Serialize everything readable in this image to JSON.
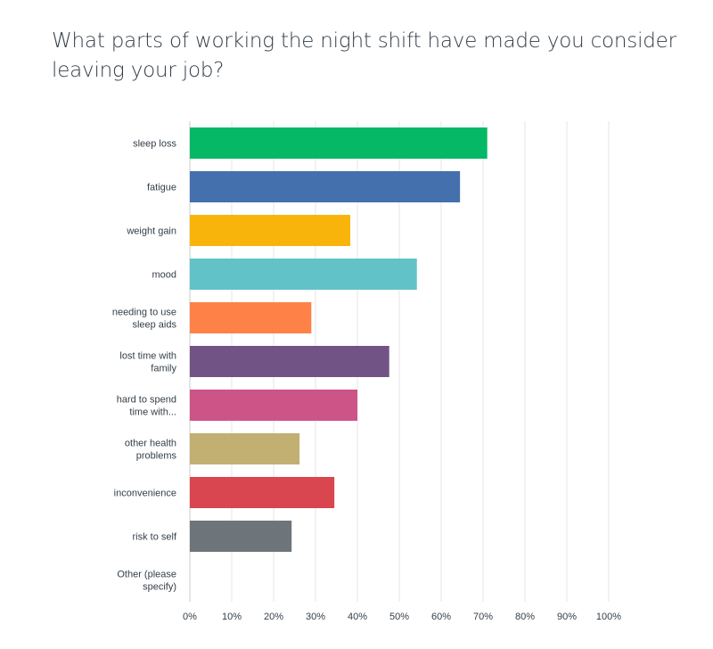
{
  "chart_data": {
    "type": "bar",
    "orientation": "horizontal",
    "title": "What parts of working the night shift have made you consider leaving your job?",
    "categories": [
      [
        "sleep loss"
      ],
      [
        "fatigue"
      ],
      [
        "weight gain"
      ],
      [
        "mood"
      ],
      [
        "needing to use",
        "sleep aids"
      ],
      [
        "lost time with",
        "family"
      ],
      [
        "hard to spend",
        "time with..."
      ],
      [
        "other health",
        "problems"
      ],
      [
        "inconvenience"
      ],
      [
        "risk to self"
      ],
      [
        "Other (please",
        "specify)"
      ]
    ],
    "values": [
      71,
      64.5,
      38.3,
      54.2,
      29,
      47.6,
      40,
      26.2,
      34.5,
      24.3,
      0
    ],
    "value_unit": "%",
    "xlim": [
      0,
      100
    ],
    "x_ticks": [
      "0%",
      "10%",
      "20%",
      "30%",
      "40%",
      "50%",
      "60%",
      "70%",
      "80%",
      "90%",
      "100%"
    ],
    "colors": [
      "#05b865",
      "#4470ae",
      "#f9b40b",
      "#61c3c8",
      "#fe8248",
      "#725385",
      "#cc5486",
      "#c1b072",
      "#d9464f",
      "#6d757b",
      "#999999"
    ],
    "grid": true,
    "legend": "none"
  }
}
